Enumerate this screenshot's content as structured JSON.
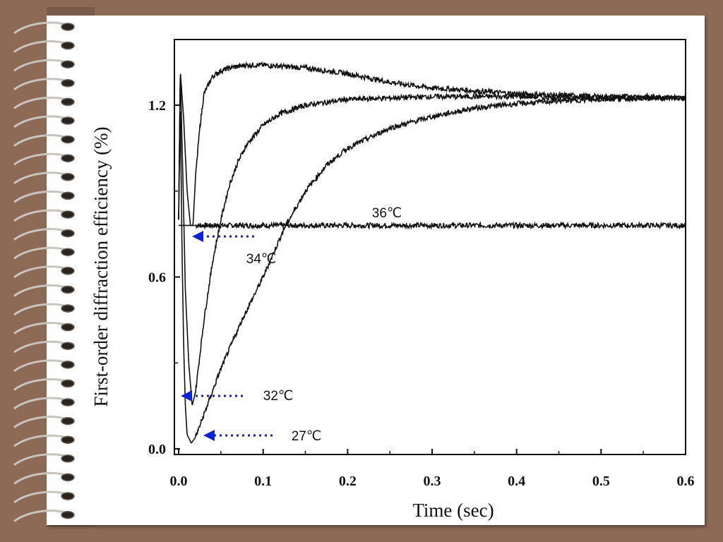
{
  "chart_data": {
    "type": "line",
    "title": "",
    "xlabel": "Time (sec)",
    "ylabel": "First-order diffraction efficiency (%)",
    "xlim": [
      0.0,
      0.6
    ],
    "ylim": [
      -0.02,
      1.45
    ],
    "x_ticks": [
      "0.0",
      "0.1",
      "0.2",
      "0.3",
      "0.4",
      "0.5",
      "0.6"
    ],
    "y_ticks": [
      "0.0",
      "0.6",
      "1.2"
    ],
    "grid": false,
    "legend": "none",
    "annotations": [
      {
        "label": "36℃",
        "series": "36℃"
      },
      {
        "label": "34℃",
        "series": "34℃"
      },
      {
        "label": "32℃",
        "series": "32℃"
      },
      {
        "label": "27℃",
        "series": "27℃"
      }
    ],
    "series": [
      {
        "name": "36℃",
        "x": [
          0.0,
          0.003,
          0.008,
          0.015,
          0.1,
          0.3,
          0.5,
          0.6
        ],
        "y": [
          0.78,
          0.78,
          0.78,
          0.78,
          0.78,
          0.78,
          0.78,
          0.78
        ]
      },
      {
        "name": "34℃",
        "x": [
          0.0,
          0.002,
          0.006,
          0.01,
          0.014,
          0.017,
          0.02,
          0.025,
          0.03,
          0.04,
          0.05,
          0.06,
          0.08,
          0.1,
          0.15,
          0.2,
          0.25,
          0.3,
          0.35,
          0.4,
          0.45,
          0.5,
          0.55,
          0.6
        ],
        "y": [
          0.8,
          1.32,
          1.15,
          0.9,
          0.78,
          0.78,
          0.95,
          1.12,
          1.24,
          1.3,
          1.32,
          1.33,
          1.34,
          1.34,
          1.33,
          1.31,
          1.28,
          1.26,
          1.25,
          1.24,
          1.235,
          1.23,
          1.23,
          1.225
        ]
      },
      {
        "name": "32℃",
        "x": [
          0.0,
          0.002,
          0.005,
          0.008,
          0.012,
          0.016,
          0.02,
          0.03,
          0.04,
          0.05,
          0.06,
          0.07,
          0.08,
          0.1,
          0.12,
          0.15,
          0.2,
          0.25,
          0.3,
          0.4,
          0.5,
          0.6
        ],
        "y": [
          0.8,
          1.32,
          0.95,
          0.55,
          0.3,
          0.15,
          0.2,
          0.45,
          0.65,
          0.8,
          0.92,
          1.0,
          1.06,
          1.13,
          1.17,
          1.2,
          1.22,
          1.225,
          1.23,
          1.23,
          1.225,
          1.225
        ]
      },
      {
        "name": "27℃",
        "x": [
          0.0,
          0.002,
          0.004,
          0.006,
          0.008,
          0.01,
          0.015,
          0.02,
          0.03,
          0.05,
          0.075,
          0.1,
          0.125,
          0.15,
          0.175,
          0.2,
          0.25,
          0.3,
          0.35,
          0.4,
          0.45,
          0.5,
          0.55,
          0.6
        ],
        "y": [
          0.8,
          1.2,
          0.7,
          0.35,
          0.15,
          0.05,
          0.02,
          0.04,
          0.12,
          0.28,
          0.45,
          0.6,
          0.77,
          0.9,
          0.99,
          1.05,
          1.12,
          1.16,
          1.19,
          1.205,
          1.215,
          1.22,
          1.225,
          1.225
        ]
      }
    ]
  },
  "colors": {
    "arrow": "#0b22d6",
    "line": "#111111",
    "frame": "#111111",
    "background": "#8c6a55"
  },
  "decoration": {
    "binding": "spiral-rings-icon"
  }
}
